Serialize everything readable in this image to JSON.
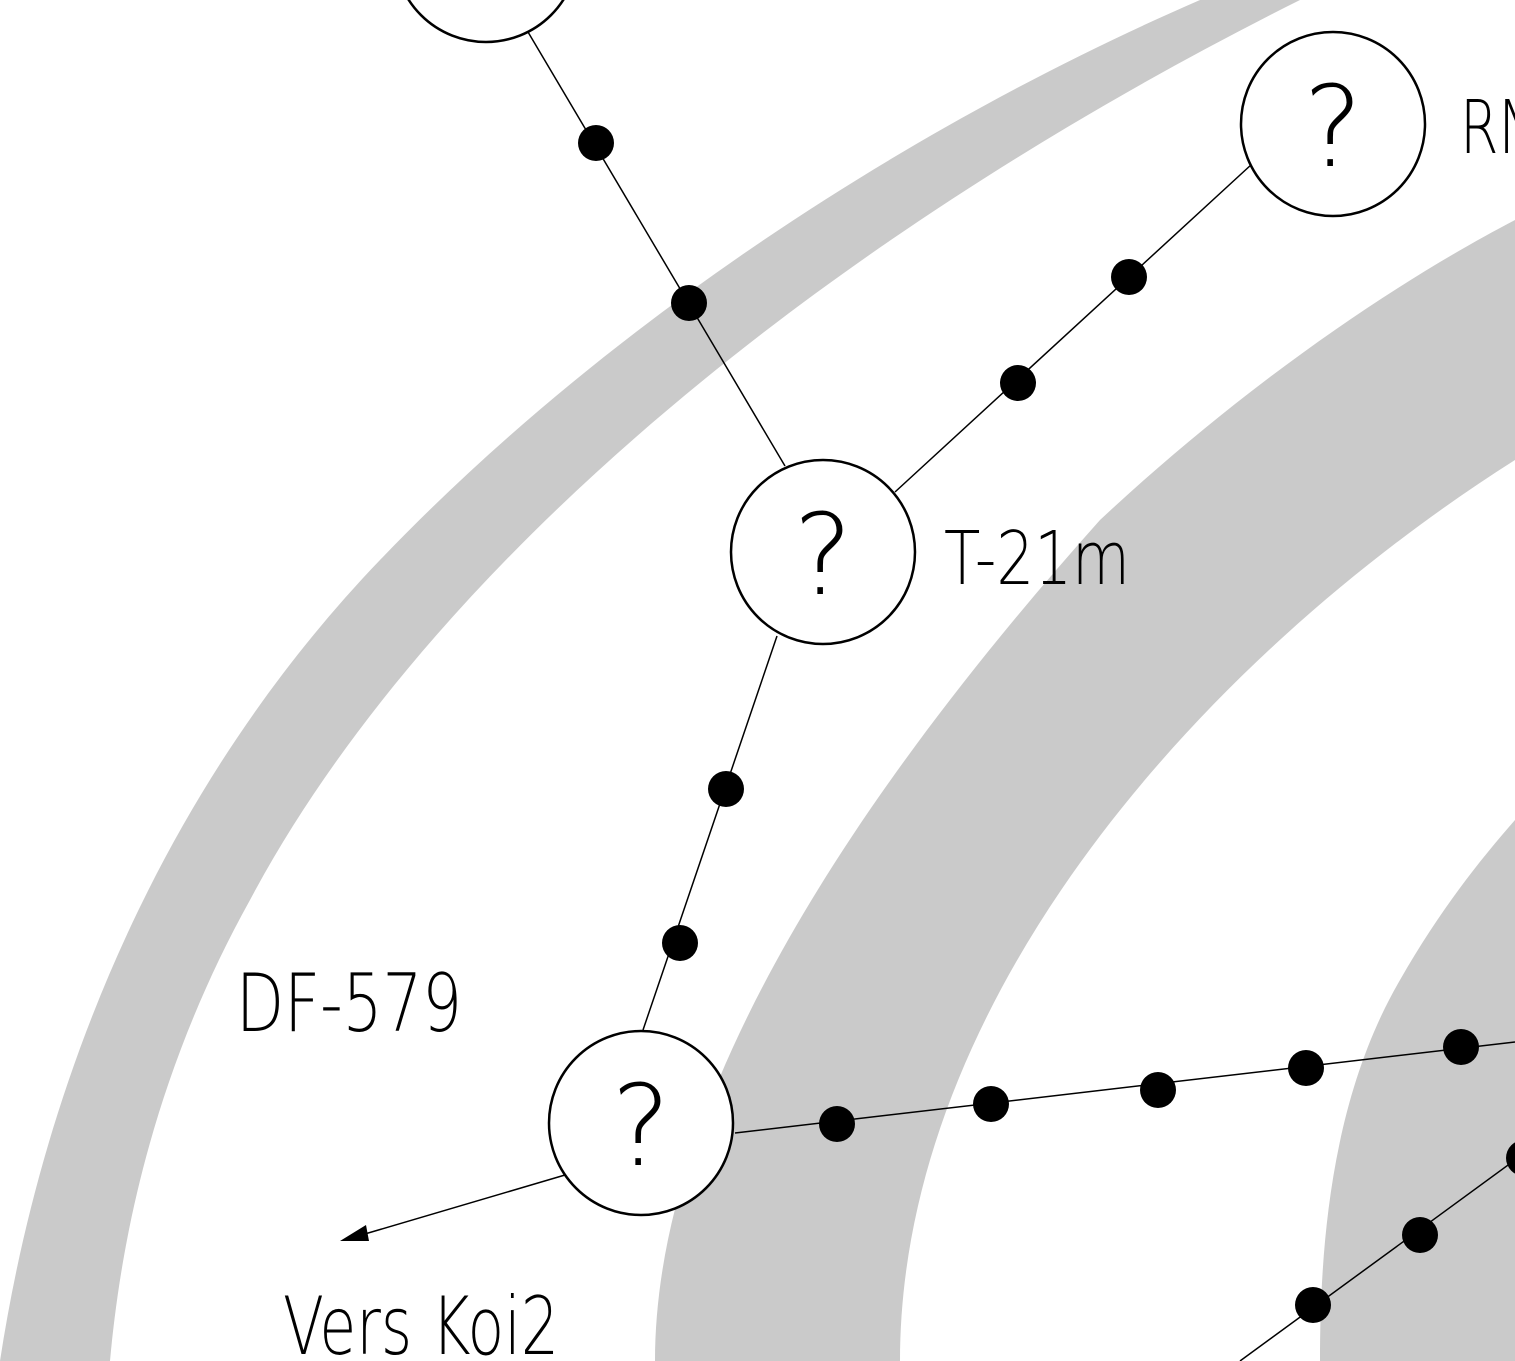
{
  "map": {
    "colors": {
      "band": "#cacaca",
      "background": "#ffffff",
      "ink": "#000000"
    },
    "systems": [
      {
        "id": "top",
        "label": "",
        "symbol": "?"
      },
      {
        "id": "rn",
        "label": "RN",
        "symbol": "?"
      },
      {
        "id": "t21m",
        "label": "T-21m",
        "symbol": "?"
      },
      {
        "id": "df579",
        "label": "DF-579",
        "symbol": "?"
      }
    ],
    "exit_label": "Vers Koi2"
  }
}
